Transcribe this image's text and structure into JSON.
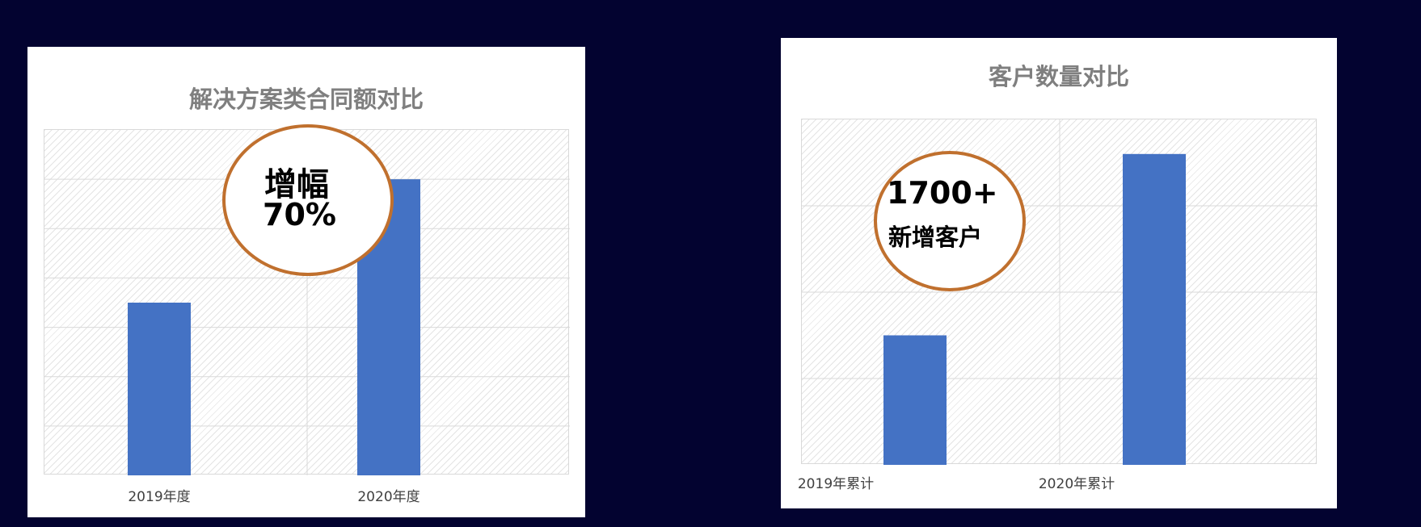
{
  "chart_data": [
    {
      "type": "bar",
      "title": "解决方案类合同额对比",
      "categories": [
        "2019年度",
        "2020年度"
      ],
      "values": [
        3.5,
        6.0
      ],
      "ylim": [
        0,
        7
      ],
      "grid": true,
      "annotation": {
        "line1": "增幅",
        "line2": "70%"
      }
    },
    {
      "type": "bar",
      "title": "客户数量对比",
      "categories": [
        "2019年累计",
        "2020年累计"
      ],
      "values": [
        1.5,
        3.6
      ],
      "ylim": [
        0,
        4
      ],
      "grid": true,
      "annotation": {
        "line1": "1700+",
        "line2": "新增客户"
      }
    }
  ],
  "colors": {
    "bar": "#4472c4",
    "callout_border": "#c0702e",
    "background": "#030330"
  }
}
